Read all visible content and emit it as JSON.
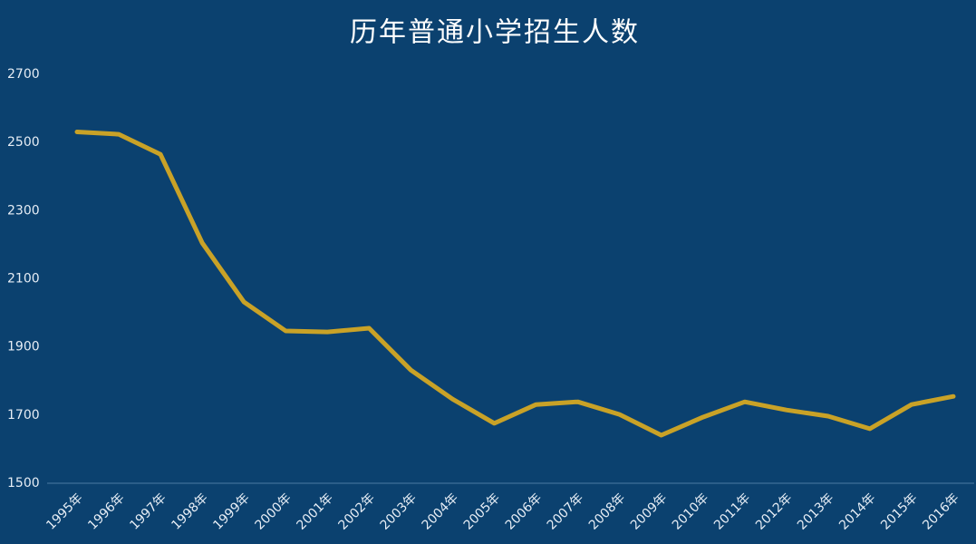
{
  "chart_data": {
    "type": "line",
    "title": "历年普通小学招生人数",
    "categories": [
      "1995年",
      "1996年",
      "1997年",
      "1998年",
      "1999年",
      "2000年",
      "2001年",
      "2002年",
      "2003年",
      "2004年",
      "2005年",
      "2006年",
      "2007年",
      "2008年",
      "2009年",
      "2010年",
      "2011年",
      "2012年",
      "2013年",
      "2014年",
      "2015年",
      "2016年"
    ],
    "values": [
      2531,
      2524,
      2465,
      2205,
      2032,
      1947,
      1944,
      1955,
      1832,
      1747,
      1676,
      1731,
      1739,
      1702,
      1641,
      1694,
      1739,
      1715,
      1697,
      1660,
      1731,
      1755
    ],
    "color": "#c9a227",
    "ylim": [
      1500,
      2700
    ],
    "yticks": [
      1500,
      1700,
      1900,
      2100,
      2300,
      2500,
      2700
    ],
    "grid": false
  }
}
